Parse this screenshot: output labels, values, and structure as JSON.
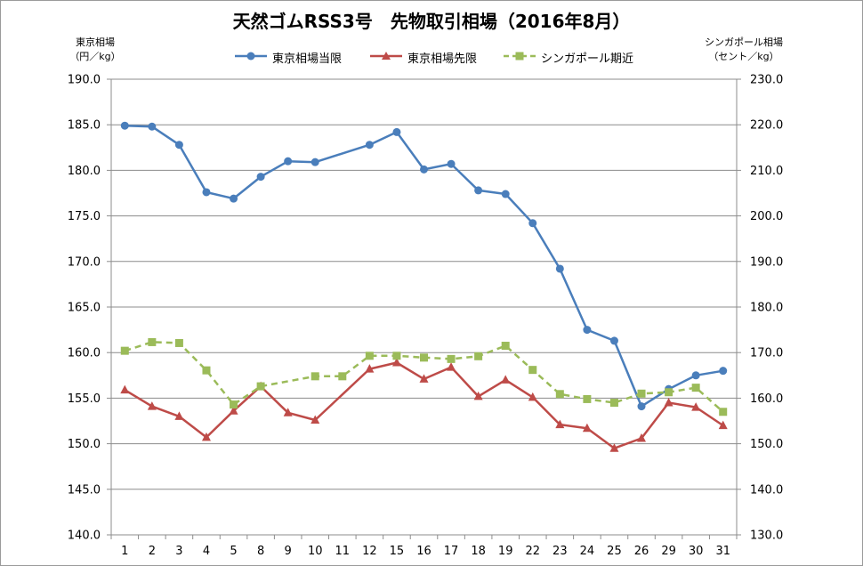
{
  "chart_data": {
    "type": "line",
    "title": "天然ゴムRSS3号　先物取引相場（2016年8月）",
    "ylabel_left": [
      "東京相場",
      "（円／kg）"
    ],
    "ylabel_right": [
      "シンガポール相場",
      "（セント／kg）"
    ],
    "categories": [
      "1",
      "2",
      "3",
      "4",
      "5",
      "8",
      "9",
      "10",
      "11",
      "12",
      "15",
      "16",
      "17",
      "18",
      "19",
      "22",
      "23",
      "24",
      "25",
      "26",
      "29",
      "30",
      "31"
    ],
    "ylim_left": [
      140,
      190
    ],
    "ylim_right": [
      130,
      230
    ],
    "yticks_left": [
      "140.0",
      "145.0",
      "150.0",
      "155.0",
      "160.0",
      "165.0",
      "170.0",
      "175.0",
      "180.0",
      "185.0",
      "190.0"
    ],
    "yticks_right": [
      "130.0",
      "140.0",
      "150.0",
      "160.0",
      "170.0",
      "180.0",
      "190.0",
      "200.0",
      "210.0",
      "220.0",
      "230.0"
    ],
    "grid": true,
    "legend_position": "top-center",
    "series": [
      {
        "name": "東京相場当限",
        "axis": "left",
        "color": "#4a7ebb",
        "marker": "circle",
        "style": "solid",
        "values": [
          184.9,
          184.8,
          182.8,
          177.6,
          176.9,
          179.3,
          181.0,
          180.9,
          null,
          182.8,
          184.2,
          180.1,
          180.7,
          177.8,
          177.4,
          174.2,
          169.2,
          162.5,
          161.3,
          154.1,
          156.0,
          157.5,
          158.0
        ]
      },
      {
        "name": "東京相場先限",
        "axis": "left",
        "color": "#be4b48",
        "marker": "triangle",
        "style": "solid",
        "values": [
          155.9,
          154.1,
          153.0,
          150.7,
          153.6,
          156.3,
          153.4,
          152.6,
          null,
          158.2,
          158.9,
          157.1,
          158.4,
          155.2,
          157.0,
          155.1,
          152.1,
          151.7,
          149.5,
          150.6,
          154.5,
          154.0,
          152.0
        ]
      },
      {
        "name": "シンガポール期近",
        "axis": "right",
        "color": "#9bbb59",
        "marker": "square",
        "style": "dashed",
        "values": [
          170.4,
          172.3,
          172.1,
          166.1,
          158.6,
          162.6,
          null,
          164.8,
          164.8,
          169.3,
          169.3,
          168.9,
          168.6,
          169.2,
          171.5,
          166.2,
          160.9,
          159.8,
          159.0,
          161.0,
          161.3,
          162.3,
          157.0
        ]
      }
    ]
  }
}
